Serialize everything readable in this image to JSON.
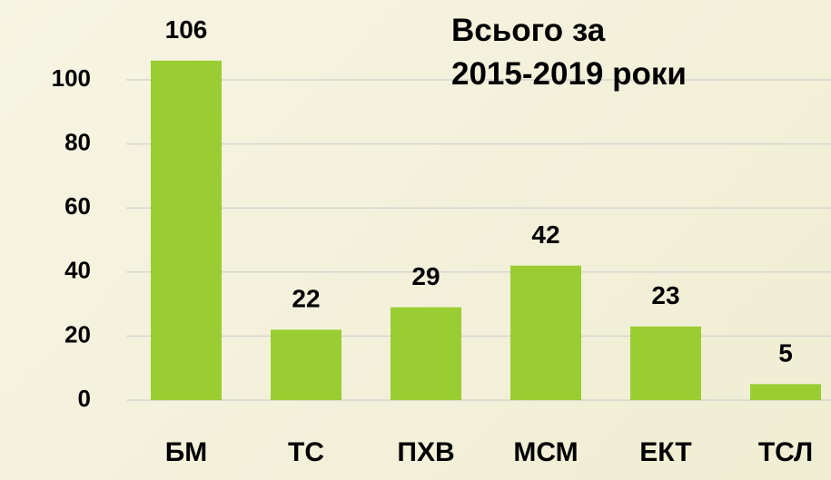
{
  "chart_data": {
    "type": "bar",
    "title": "Всього за\n2015-2019 роки",
    "categories": [
      "БМ",
      "ТС",
      "ПХВ",
      "МСМ",
      "ЕКТ",
      "ТСЛ"
    ],
    "values": [
      106,
      22,
      29,
      42,
      23,
      5
    ],
    "color": "#9acd32",
    "ylim": [
      0,
      120
    ],
    "yticks": [
      0,
      20,
      40,
      60,
      80,
      100
    ],
    "grid": true
  }
}
